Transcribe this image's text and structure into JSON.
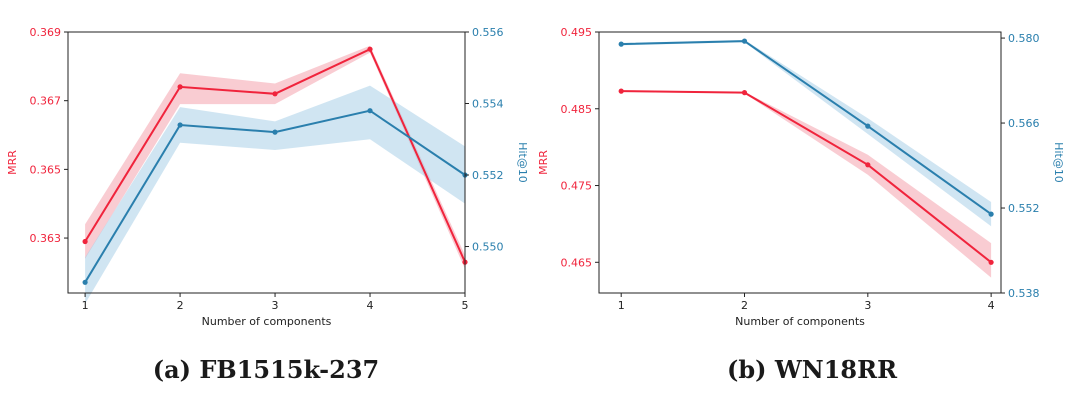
{
  "colors": {
    "mrr": "#f0243c",
    "hits": "#2a7fad",
    "mrr_band": "#f4a3ad",
    "hits_band": "#a9cfe8",
    "axis": "#222222"
  },
  "chart_data": [
    {
      "type": "line",
      "caption": "(a) FB1515k-237",
      "xlabel": "Number of components",
      "ylabel_left": "MRR",
      "ylabel_right": "Hit@10",
      "x": [
        1,
        2,
        3,
        4,
        5
      ],
      "x_ticks": [
        "1",
        "2",
        "3",
        "4",
        "5"
      ],
      "xlim": [
        0.82,
        5.0
      ],
      "y_left_lim": [
        0.3614,
        0.369
      ],
      "y_left_ticks": [
        "0.363",
        "0.365",
        "0.367",
        "0.369"
      ],
      "y_right_lim": [
        0.5487,
        0.556
      ],
      "y_right_ticks": [
        "0.550",
        "0.552",
        "0.554",
        "0.556"
      ],
      "series": [
        {
          "name": "MRR",
          "axis": "left",
          "values": [
            0.3629,
            0.3674,
            0.3672,
            0.3685,
            0.3623
          ],
          "band_upper": [
            0.3634,
            0.3678,
            0.3675,
            0.3686,
            0.3625
          ],
          "band_lower": [
            0.3624,
            0.3669,
            0.3669,
            0.3684,
            0.3621
          ]
        },
        {
          "name": "Hit@10",
          "axis": "right",
          "values": [
            0.549,
            0.5534,
            0.5532,
            0.5538,
            0.552
          ],
          "band_upper": [
            0.5497,
            0.5539,
            0.5535,
            0.5545,
            0.5528
          ],
          "band_lower": [
            0.5484,
            0.5529,
            0.5527,
            0.553,
            0.5512
          ]
        }
      ]
    },
    {
      "type": "line",
      "caption": "(b) WN18RR",
      "xlabel": "Number of components",
      "ylabel_left": "MRR",
      "ylabel_right": "Hit@10",
      "x": [
        1,
        2,
        3,
        4
      ],
      "x_ticks": [
        "1",
        "2",
        "3",
        "4"
      ],
      "xlim": [
        0.82,
        4.08
      ],
      "y_left_lim": [
        0.461,
        0.495
      ],
      "y_left_ticks": [
        "0.465",
        "0.475",
        "0.485",
        "0.495"
      ],
      "y_right_lim": [
        0.538,
        0.581
      ],
      "y_right_ticks": [
        "0.538",
        "0.552",
        "0.566",
        "0.580"
      ],
      "series": [
        {
          "name": "MRR",
          "axis": "left",
          "values": [
            0.4873,
            0.4871,
            0.4777,
            0.465
          ],
          "band_upper": [
            0.4874,
            0.4872,
            0.479,
            0.4675
          ],
          "band_lower": [
            0.4872,
            0.487,
            0.4764,
            0.463
          ]
        },
        {
          "name": "Hit@10",
          "axis": "right",
          "values": [
            0.579,
            0.5795,
            0.5655,
            0.551
          ],
          "band_upper": [
            0.5792,
            0.5797,
            0.5668,
            0.553
          ],
          "band_lower": [
            0.5788,
            0.5793,
            0.5642,
            0.549
          ]
        }
      ]
    }
  ]
}
